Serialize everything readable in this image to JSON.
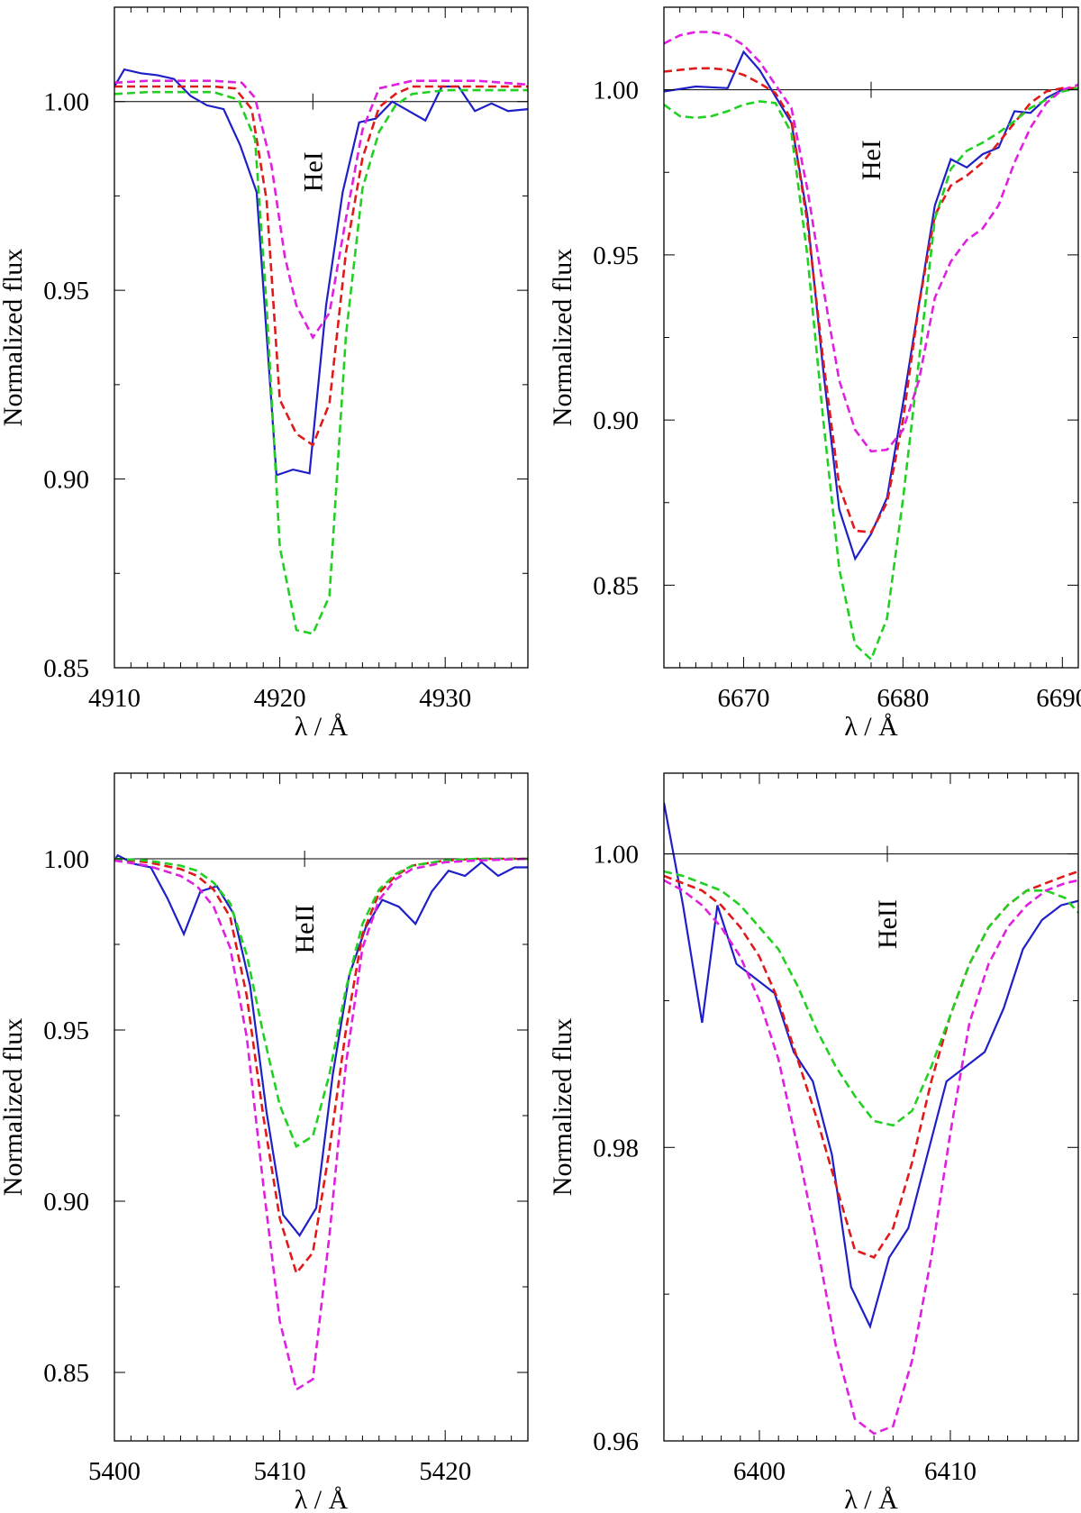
{
  "chart_data": [
    {
      "type": "line",
      "line_label": "HeI",
      "line_center": 4922,
      "reference_level": 1.0,
      "xlabel": "λ / Å",
      "ylabel": "Normalized flux",
      "xlim": [
        4910,
        4935
      ],
      "ylim": [
        0.85,
        1.025
      ],
      "xticks": [
        4910,
        4920,
        4930
      ],
      "xtick_labels": [
        "4910",
        "4920",
        "4930"
      ],
      "yticks": [
        0.85,
        0.9,
        0.95,
        1.0
      ],
      "ytick_labels": [
        "0.85",
        "0.90",
        "0.95",
        "1.00"
      ],
      "series": [
        {
          "name": "observed",
          "color": "#1f1fc8",
          "dashed": false,
          "x": [
            4910,
            4910.6,
            4911.6,
            4912.6,
            4913.6,
            4914.6,
            4915.6,
            4916.6,
            4917.6,
            4918.6,
            4919.8,
            4920.8,
            4921.8,
            4922.8,
            4923.8,
            4924.8,
            4925.8,
            4926.8,
            4927.8,
            4928.8,
            4929.8,
            4930.8,
            4931.8,
            4932.8,
            4933.8,
            4935
          ],
          "y": [
            1.004,
            1.0085,
            1.0075,
            1.007,
            1.006,
            1.0015,
            0.999,
            0.998,
            0.9885,
            0.976,
            0.901,
            0.9025,
            0.9015,
            0.946,
            0.976,
            0.9945,
            0.9955,
            1.0,
            0.9975,
            0.995,
            1.004,
            1.004,
            0.9975,
            0.9995,
            0.9975,
            0.998
          ]
        },
        {
          "name": "model-red",
          "color": "#e01a1a",
          "dashed": true,
          "x": [
            4910,
            4912,
            4914,
            4916,
            4917.3,
            4918.3,
            4919.2,
            4920,
            4921,
            4922,
            4923,
            4924,
            4925,
            4926,
            4927,
            4928,
            4930,
            4932,
            4935
          ],
          "y": [
            1.004,
            1.004,
            1.004,
            1.004,
            1.0035,
            0.998,
            0.974,
            0.921,
            0.912,
            0.909,
            0.92,
            0.96,
            0.985,
            0.9985,
            1.002,
            1.004,
            1.004,
            1.004,
            1.004
          ]
        },
        {
          "name": "model-green",
          "color": "#22d022",
          "dashed": true,
          "x": [
            4910,
            4912,
            4914,
            4916,
            4917.5,
            4918.5,
            4919.2,
            4920,
            4921,
            4922,
            4923,
            4924,
            4925,
            4926,
            4927,
            4928,
            4930,
            4932,
            4935
          ],
          "y": [
            1.002,
            1.0025,
            1.0025,
            1.0025,
            1.0005,
            0.99,
            0.946,
            0.882,
            0.86,
            0.859,
            0.869,
            0.938,
            0.977,
            0.992,
            0.999,
            1.002,
            1.003,
            1.003,
            1.003
          ]
        },
        {
          "name": "model-magenta",
          "color": "#e020e0",
          "dashed": true,
          "x": [
            4910,
            4912,
            4914,
            4916,
            4917.7,
            4918.5,
            4919.5,
            4920.3,
            4921,
            4922,
            4923,
            4924,
            4925,
            4926,
            4927,
            4928,
            4930,
            4932,
            4935
          ],
          "y": [
            1.005,
            1.0055,
            1.0055,
            1.0055,
            1.005,
            1.001,
            0.983,
            0.959,
            0.946,
            0.9375,
            0.944,
            0.969,
            0.9925,
            1.0035,
            1.0045,
            1.0055,
            1.0055,
            1.0055,
            1.0045
          ]
        }
      ]
    },
    {
      "type": "line",
      "line_label": "HeI",
      "line_center": 6678,
      "reference_level": 1.0,
      "xlabel": "λ / Å",
      "ylabel": "Normalized flux",
      "xlim": [
        6665,
        6691
      ],
      "ylim": [
        0.825,
        1.025
      ],
      "xticks": [
        6670,
        6680,
        6690
      ],
      "xtick_labels": [
        "6670",
        "6680",
        "6690"
      ],
      "yticks": [
        0.85,
        0.9,
        0.95,
        1.0
      ],
      "ytick_labels": [
        "0.85",
        "0.90",
        "0.95",
        "1.00"
      ],
      "series": [
        {
          "name": "observed",
          "color": "#1f1fc8",
          "dashed": false,
          "x": [
            6665,
            6667,
            6669,
            6670,
            6671,
            6672,
            6673,
            6674,
            6675,
            6676,
            6677,
            6678,
            6679,
            6680,
            6681,
            6682,
            6683,
            6684,
            6685,
            6686,
            6687,
            6688,
            6689,
            6690,
            6691
          ],
          "y": [
            0.9995,
            1.001,
            1.0005,
            1.0115,
            1.006,
            0.998,
            0.99,
            0.962,
            0.915,
            0.873,
            0.858,
            0.8655,
            0.8765,
            0.905,
            0.935,
            0.965,
            0.979,
            0.9765,
            0.9805,
            0.9825,
            0.9935,
            0.993,
            0.9975,
            1.0,
            1.0005
          ]
        },
        {
          "name": "model-red",
          "color": "#e01a1a",
          "dashed": true,
          "x": [
            6665,
            6666,
            6667,
            6668,
            6669,
            6670,
            6671,
            6672,
            6673,
            6674,
            6675,
            6676,
            6677,
            6678,
            6679,
            6680,
            6681,
            6682,
            6683,
            6684,
            6685,
            6686,
            6687,
            6688,
            6689,
            6690,
            6691
          ],
          "y": [
            1.0055,
            1.006,
            1.0065,
            1.0065,
            1.006,
            1.0045,
            1.002,
            0.999,
            0.991,
            0.96,
            0.918,
            0.88,
            0.8665,
            0.866,
            0.875,
            0.9,
            0.935,
            0.962,
            0.971,
            0.974,
            0.978,
            0.984,
            0.99,
            0.996,
            0.9995,
            1.0005,
            1.0005
          ]
        },
        {
          "name": "model-green",
          "color": "#22d022",
          "dashed": true,
          "x": [
            6665,
            6666,
            6667,
            6668,
            6669,
            6670,
            6671,
            6672,
            6673,
            6674,
            6675,
            6676,
            6677,
            6678,
            6679,
            6680,
            6681,
            6682,
            6683,
            6684,
            6685,
            6686,
            6687,
            6688,
            6689,
            6690,
            6691
          ],
          "y": [
            0.9955,
            0.992,
            0.9915,
            0.992,
            0.9935,
            0.9955,
            0.9965,
            0.996,
            0.987,
            0.95,
            0.9,
            0.855,
            0.832,
            0.8275,
            0.84,
            0.876,
            0.918,
            0.961,
            0.976,
            0.9815,
            0.984,
            0.987,
            0.9905,
            0.9945,
            0.997,
            0.9995,
            1.0005
          ]
        },
        {
          "name": "model-magenta",
          "color": "#e020e0",
          "dashed": true,
          "x": [
            6665,
            6666,
            6667,
            6668,
            6669,
            6670,
            6671,
            6672,
            6673,
            6674,
            6675,
            6676,
            6677,
            6678,
            6679,
            6680,
            6681,
            6682,
            6683,
            6684,
            6685,
            6686,
            6687,
            6688,
            6689,
            6690,
            6691
          ],
          "y": [
            1.014,
            1.0165,
            1.0175,
            1.0175,
            1.0165,
            1.0135,
            1.0085,
            1.0015,
            0.9945,
            0.97,
            0.94,
            0.912,
            0.897,
            0.8905,
            0.891,
            0.897,
            0.912,
            0.937,
            0.948,
            0.9545,
            0.958,
            0.965,
            0.978,
            0.9885,
            0.996,
            1.0,
            1.0015
          ]
        }
      ]
    },
    {
      "type": "line",
      "line_label": "HeII",
      "line_center": 5411.5,
      "reference_level": 1.0,
      "xlabel": "λ / Å",
      "ylabel": "Normalized flux",
      "xlim": [
        5400,
        5425
      ],
      "ylim": [
        0.83,
        1.025
      ],
      "xticks": [
        5400,
        5410,
        5420
      ],
      "xtick_labels": [
        "5400",
        "5410",
        "5420"
      ],
      "yticks": [
        0.85,
        0.9,
        0.95,
        1.0
      ],
      "ytick_labels": [
        "0.85",
        "0.90",
        "0.95",
        "1.00"
      ],
      "series": [
        {
          "name": "observed",
          "color": "#1f1fc8",
          "dashed": false,
          "x": [
            5400,
            5400.2,
            5401.2,
            5402.2,
            5403.2,
            5404.2,
            5405.2,
            5406.2,
            5407.2,
            5408.2,
            5409.2,
            5410.2,
            5411.2,
            5412.2,
            5413.2,
            5414.2,
            5415.2,
            5416.2,
            5417.2,
            5418.2,
            5419.2,
            5420.2,
            5421.2,
            5422.2,
            5423.2,
            5424.2,
            5425
          ],
          "y": [
            0.9995,
            1.001,
            0.9985,
            0.9975,
            0.9885,
            0.978,
            0.9905,
            0.992,
            0.984,
            0.963,
            0.926,
            0.896,
            0.89,
            0.898,
            0.937,
            0.966,
            0.98,
            0.988,
            0.986,
            0.981,
            0.9905,
            0.9965,
            0.995,
            0.999,
            0.995,
            0.9975,
            0.9975
          ]
        },
        {
          "name": "model-red",
          "color": "#e01a1a",
          "dashed": true,
          "x": [
            5400,
            5402,
            5404,
            5405,
            5406,
            5407,
            5408,
            5409,
            5410,
            5411,
            5412,
            5413,
            5414,
            5415,
            5416,
            5417,
            5418,
            5420,
            5422,
            5425
          ],
          "y": [
            1.0,
            0.999,
            0.997,
            0.995,
            0.991,
            0.983,
            0.96,
            0.925,
            0.895,
            0.879,
            0.885,
            0.915,
            0.95,
            0.978,
            0.99,
            0.995,
            0.998,
            0.9995,
            1.0,
            1.0
          ]
        },
        {
          "name": "model-green",
          "color": "#22d022",
          "dashed": true,
          "x": [
            5400,
            5402,
            5404,
            5405,
            5406,
            5407,
            5408,
            5409,
            5410,
            5411,
            5412,
            5413,
            5414,
            5415,
            5416,
            5417,
            5418,
            5420,
            5422,
            5425
          ],
          "y": [
            1.0,
            0.9995,
            0.998,
            0.9965,
            0.993,
            0.987,
            0.972,
            0.949,
            0.928,
            0.916,
            0.919,
            0.937,
            0.962,
            0.981,
            0.991,
            0.9955,
            0.998,
            0.9995,
            1.0,
            1.0
          ]
        },
        {
          "name": "model-magenta",
          "color": "#e020e0",
          "dashed": true,
          "x": [
            5400,
            5402,
            5404,
            5405,
            5406,
            5407,
            5408,
            5409,
            5410,
            5411,
            5412,
            5413,
            5414,
            5415,
            5416,
            5417,
            5418,
            5420,
            5422,
            5425
          ],
          "y": [
            0.9995,
            0.998,
            0.995,
            0.992,
            0.986,
            0.974,
            0.948,
            0.905,
            0.865,
            0.845,
            0.848,
            0.89,
            0.94,
            0.974,
            0.988,
            0.994,
            0.997,
            0.999,
            0.9995,
            1.0
          ]
        }
      ]
    },
    {
      "type": "line",
      "line_label": "HeII",
      "line_center": 6406.7,
      "reference_level": 1.0,
      "xlabel": "λ / Å",
      "ylabel": "Normalized flux",
      "xlim": [
        6395,
        6416.7
      ],
      "ylim": [
        0.96,
        1.0055
      ],
      "xticks": [
        6400,
        6410
      ],
      "xtick_labels": [
        "6400",
        "6410"
      ],
      "yticks": [
        0.96,
        0.98,
        1.0
      ],
      "ytick_labels": [
        "0.96",
        "0.98",
        "1.00"
      ],
      "series": [
        {
          "name": "observed",
          "color": "#1f1fc8",
          "dashed": false,
          "x": [
            6395,
            6396,
            6397,
            6397.8,
            6398.8,
            6399.8,
            6400.8,
            6401.8,
            6402.8,
            6403.8,
            6404.8,
            6405.8,
            6406.8,
            6407.8,
            6408.8,
            6409.8,
            6410.8,
            6411.8,
            6412.8,
            6413.8,
            6414.8,
            6415.8,
            6416.7
          ],
          "y": [
            1.0035,
            0.9965,
            0.9885,
            0.9965,
            0.9925,
            0.9915,
            0.9905,
            0.9865,
            0.9845,
            0.9795,
            0.9705,
            0.9678,
            0.9725,
            0.9745,
            0.9795,
            0.9845,
            0.9855,
            0.9865,
            0.9895,
            0.9935,
            0.9955,
            0.9965,
            0.9968
          ]
        },
        {
          "name": "model-red",
          "color": "#e01a1a",
          "dashed": true,
          "x": [
            6395,
            6396,
            6397,
            6398,
            6399,
            6400,
            6401,
            6402,
            6403,
            6404,
            6405,
            6406,
            6407,
            6408,
            6409,
            6410,
            6411,
            6412,
            6413,
            6414,
            6415,
            6416,
            6416.7
          ],
          "y": [
            0.9985,
            0.998,
            0.9975,
            0.9965,
            0.995,
            0.993,
            0.99,
            0.986,
            0.982,
            0.9775,
            0.973,
            0.9725,
            0.9745,
            0.979,
            0.9845,
            0.989,
            0.9925,
            0.995,
            0.9965,
            0.9975,
            0.998,
            0.9985,
            0.9988
          ]
        },
        {
          "name": "model-green",
          "color": "#22d022",
          "dashed": true,
          "x": [
            6395,
            6396,
            6397,
            6398,
            6399,
            6400,
            6401,
            6402,
            6403,
            6404,
            6405,
            6406,
            6407,
            6408,
            6409,
            6410,
            6411,
            6412,
            6413,
            6414,
            6415,
            6416,
            6416.7
          ],
          "y": [
            0.9988,
            0.9985,
            0.998,
            0.9975,
            0.9965,
            0.995,
            0.9935,
            0.991,
            0.988,
            0.9855,
            0.9835,
            0.9818,
            0.9815,
            0.9825,
            0.9855,
            0.989,
            0.9925,
            0.995,
            0.9965,
            0.9975,
            0.9975,
            0.997,
            0.996
          ]
        },
        {
          "name": "model-magenta",
          "color": "#e020e0",
          "dashed": true,
          "x": [
            6395,
            6396,
            6397,
            6398,
            6399,
            6400,
            6401,
            6402,
            6403,
            6404,
            6405,
            6406,
            6407,
            6408,
            6409,
            6410,
            6411,
            6412,
            6413,
            6414,
            6415,
            6416,
            6416.7
          ],
          "y": [
            0.9982,
            0.9975,
            0.9965,
            0.995,
            0.993,
            0.99,
            0.986,
            0.98,
            0.9735,
            0.9665,
            0.9615,
            0.9605,
            0.961,
            0.9655,
            0.9725,
            0.981,
            0.9885,
            0.9925,
            0.995,
            0.9965,
            0.9975,
            0.998,
            0.9982
          ]
        }
      ]
    }
  ]
}
